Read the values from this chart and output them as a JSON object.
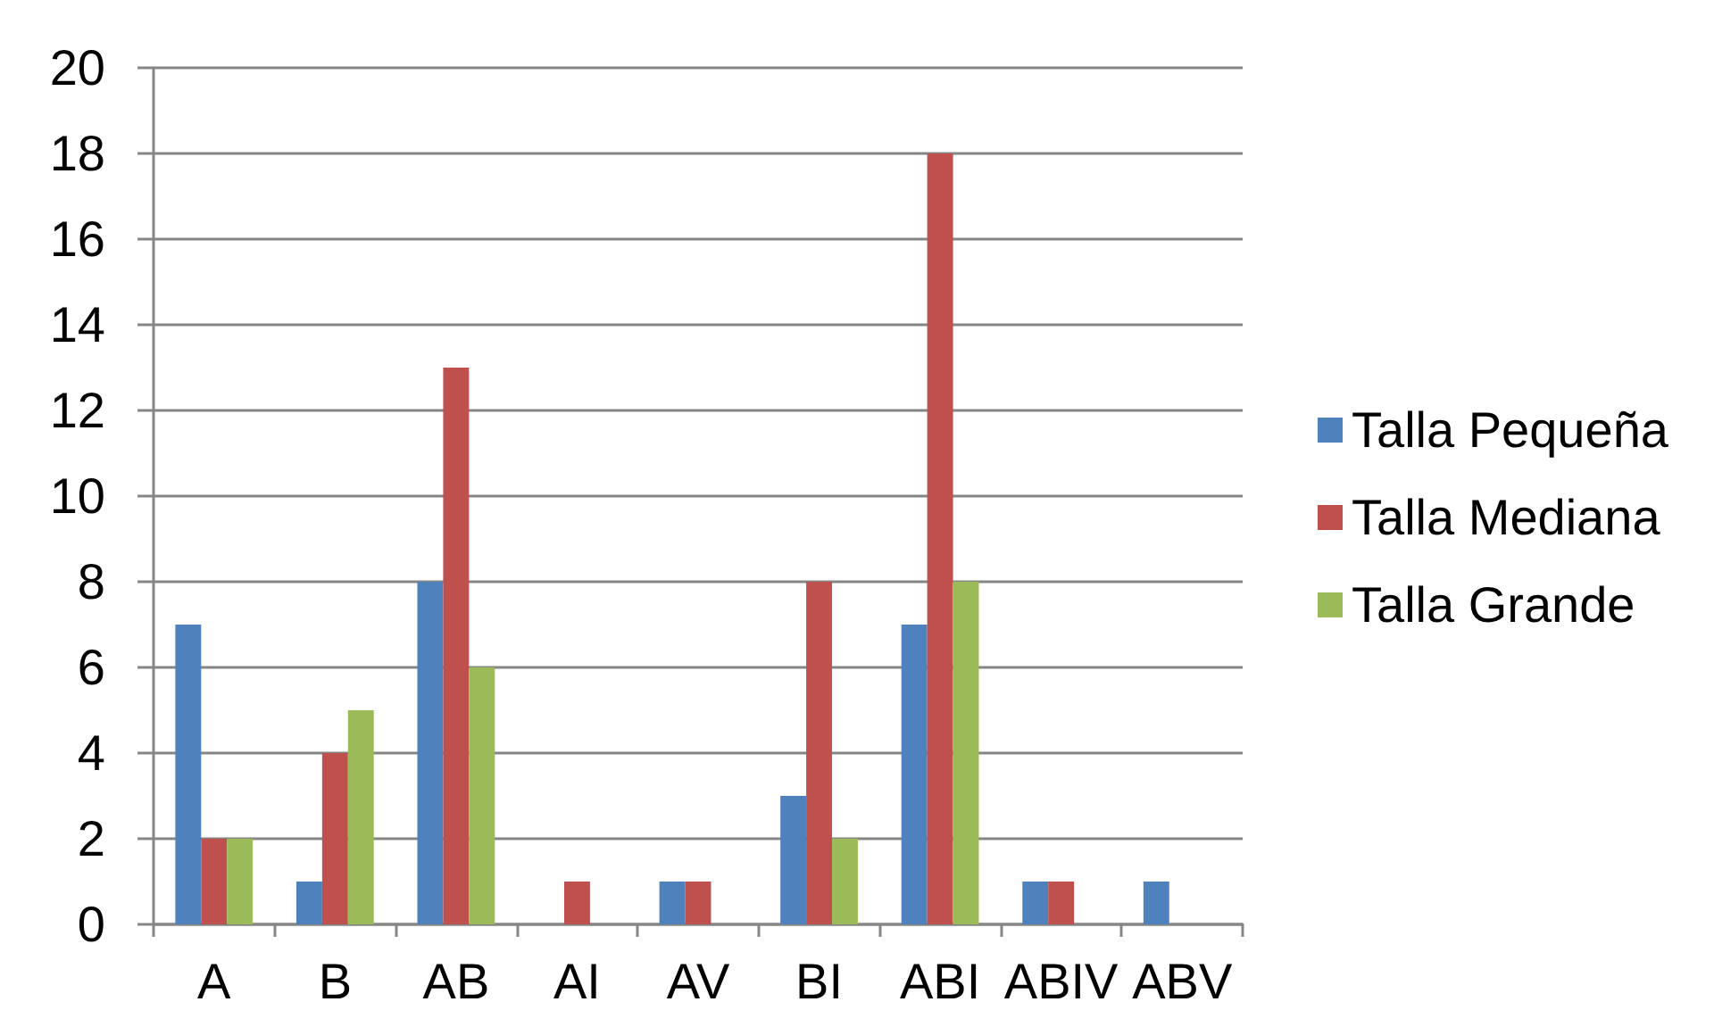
{
  "chart_data": {
    "type": "bar",
    "categories": [
      "A",
      "B",
      "AB",
      "AI",
      "AV",
      "BI",
      "ABI",
      "ABIV",
      "ABV"
    ],
    "series": [
      {
        "name": "Talla Pequeña",
        "color": "#4f81bd",
        "values": [
          7,
          1,
          8,
          0,
          1,
          3,
          7,
          1,
          1
        ]
      },
      {
        "name": "Talla Mediana",
        "color": "#c0504d",
        "values": [
          2,
          4,
          13,
          1,
          1,
          8,
          18,
          1,
          0
        ]
      },
      {
        "name": "Talla Grande",
        "color": "#9bbb59",
        "values": [
          2,
          5,
          6,
          0,
          0,
          2,
          8,
          0,
          0
        ]
      }
    ],
    "ylim": [
      0,
      20
    ],
    "yticks": [
      0,
      2,
      4,
      6,
      8,
      10,
      12,
      14,
      16,
      18,
      20
    ],
    "grid": "y",
    "legend": "right"
  }
}
